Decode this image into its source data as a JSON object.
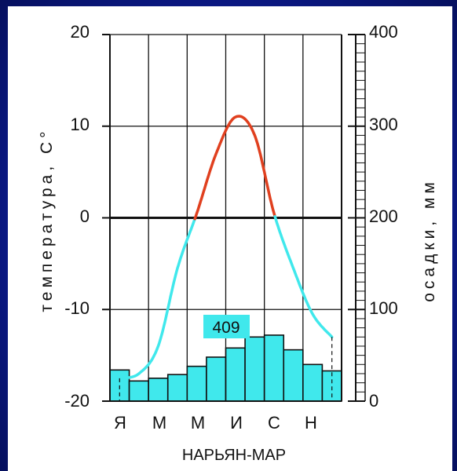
{
  "chart_data": {
    "type": "climatogram",
    "title": "НАРЬЯН-МАР",
    "y_left_label": "температура, С°",
    "y_right_label": "осадки, мм",
    "y_left_range": [
      -20,
      20
    ],
    "y_left_ticks": [
      "20",
      "10",
      "0",
      "-10",
      "-20"
    ],
    "y_right_range": [
      0,
      400
    ],
    "y_right_ticks": [
      "400",
      "300",
      "200",
      "100",
      "0"
    ],
    "month_labels": [
      "Я",
      "М",
      "М",
      "И",
      "С",
      "Н"
    ],
    "annotation": "409",
    "colors": {
      "warm_line": "#e0401f",
      "cold_line": "#40e8ec",
      "bars": "#40e8ec",
      "annotation_bg": "#40e8ec",
      "grid": "#111111"
    },
    "temperature": {
      "months": [
        1,
        2,
        3,
        4,
        5,
        6,
        7,
        8,
        9,
        10,
        11,
        12
      ],
      "values": [
        -17.5,
        -17,
        -14,
        -5.5,
        0.5,
        7,
        11,
        9,
        0.5,
        -5.5,
        -10.5,
        -13
      ]
    },
    "precipitation": {
      "months": [
        1,
        2,
        3,
        4,
        5,
        6,
        7,
        8,
        9,
        10,
        11,
        12
      ],
      "values": [
        34,
        22,
        25,
        29,
        38,
        48,
        58,
        70,
        72,
        56,
        40,
        33
      ]
    }
  }
}
